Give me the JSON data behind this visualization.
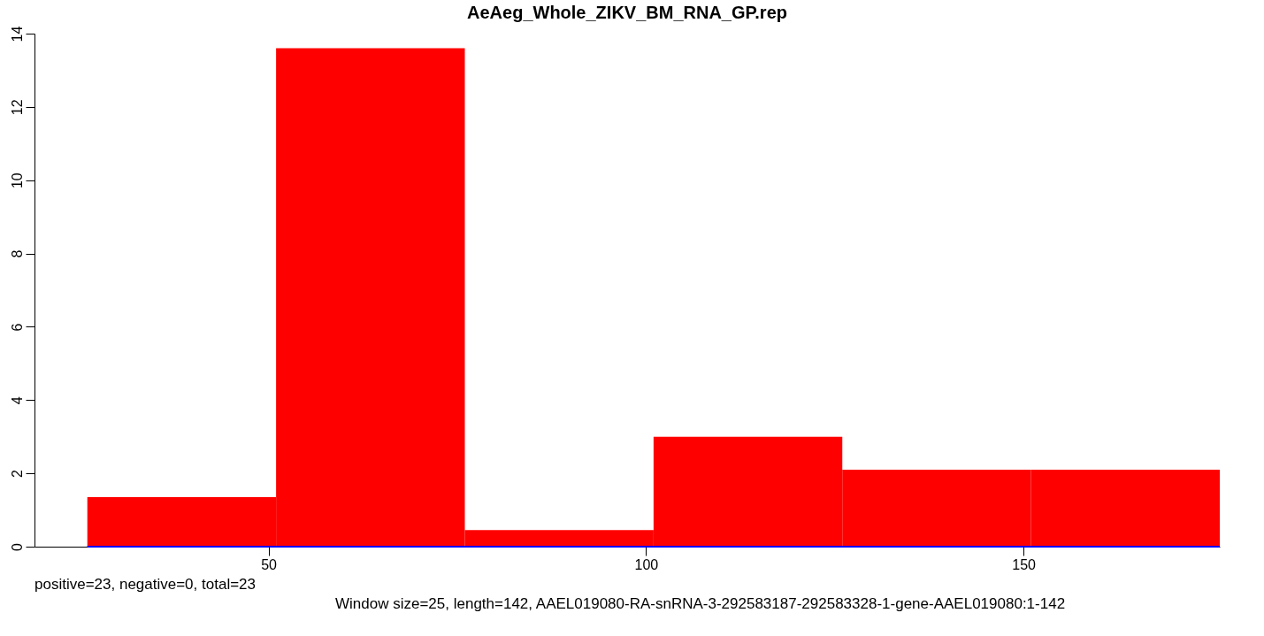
{
  "chart_data": {
    "type": "histogram",
    "title": "AeAeg_Whole_ZIKV_BM_RNA_GP.rep",
    "bins": [
      26,
      51,
      76,
      101,
      126,
      151,
      176
    ],
    "series": [
      {
        "color": "#ff0000",
        "values": [
          1.35,
          13.6,
          0.45,
          3.0,
          2.1,
          2.1
        ]
      },
      {
        "type": "line",
        "color": "#0000ff",
        "x": [
          26,
          176
        ],
        "values": [
          0,
          0
        ]
      }
    ],
    "xlim": [
      19,
      176
    ],
    "xticks": [
      50,
      100,
      150
    ],
    "ylim": [
      0,
      14
    ],
    "yticks": [
      0,
      2,
      4,
      6,
      8,
      10,
      12,
      14
    ],
    "grid": false,
    "annotations": [
      "positive=23, negative=0, total=23",
      "Window size=25, length=142, AAEL019080-RA-snRNA-3-292583187-292583328-1-gene-AAEL019080:1-142"
    ]
  }
}
